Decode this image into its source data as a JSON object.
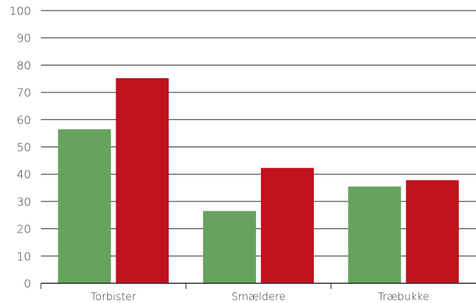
{
  "chart_data": {
    "type": "bar",
    "title": "",
    "xlabel": "",
    "ylabel": "",
    "categories": [
      "Torbister",
      "Smældere",
      "Træbukke"
    ],
    "series": [
      {
        "values": [
          56.5,
          26.5,
          35.5
        ],
        "color": "#67a35e"
      },
      {
        "values": [
          75.2,
          42.3,
          37.8
        ],
        "color": "#c0121d"
      }
    ],
    "ylim": [
      0,
      100
    ],
    "yticks": [
      0,
      10,
      20,
      30,
      40,
      50,
      60,
      70,
      80,
      90,
      100
    ],
    "grid": true,
    "legend": "none"
  }
}
